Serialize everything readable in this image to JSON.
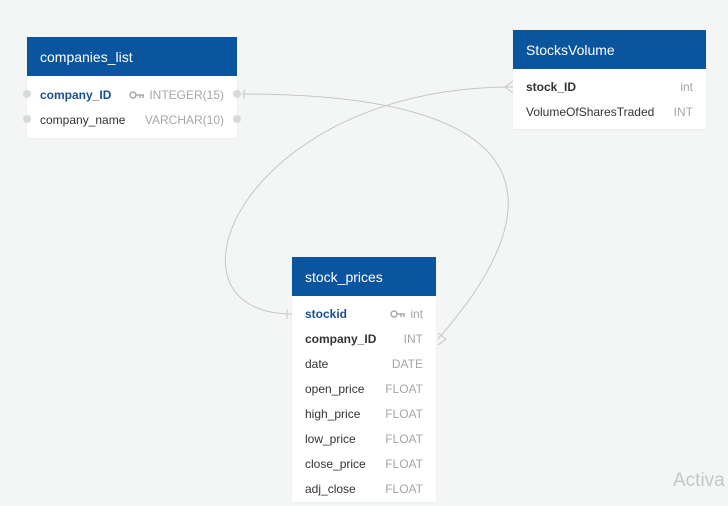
{
  "tables": {
    "companies_list": {
      "title": "companies_list",
      "fields": [
        {
          "name": "company_ID",
          "type": "INTEGER(15)"
        },
        {
          "name": "company_name",
          "type": "VARCHAR(10)"
        }
      ]
    },
    "stocks_volume": {
      "title": "StocksVolume",
      "fields": [
        {
          "name": "stock_ID",
          "type": "int"
        },
        {
          "name": "VolumeOfSharesTraded",
          "type": "INT"
        }
      ]
    },
    "stock_prices": {
      "title": "stock_prices",
      "fields": [
        {
          "name": "stockid",
          "type": "int"
        },
        {
          "name": "company_ID",
          "type": "INT"
        },
        {
          "name": "date",
          "type": "DATE"
        },
        {
          "name": "open_price",
          "type": "FLOAT"
        },
        {
          "name": "high_price",
          "type": "FLOAT"
        },
        {
          "name": "low_price",
          "type": "FLOAT"
        },
        {
          "name": "close_price",
          "type": "FLOAT"
        },
        {
          "name": "adj_close",
          "type": "FLOAT"
        }
      ]
    }
  },
  "colors": {
    "header": "#0b559f",
    "primary_key_text": "#1a4f8f",
    "connector": "#c6c6c6",
    "background": "#f4f5f5"
  },
  "icons": {
    "primary_key": "key-icon"
  },
  "watermark": "Activa"
}
